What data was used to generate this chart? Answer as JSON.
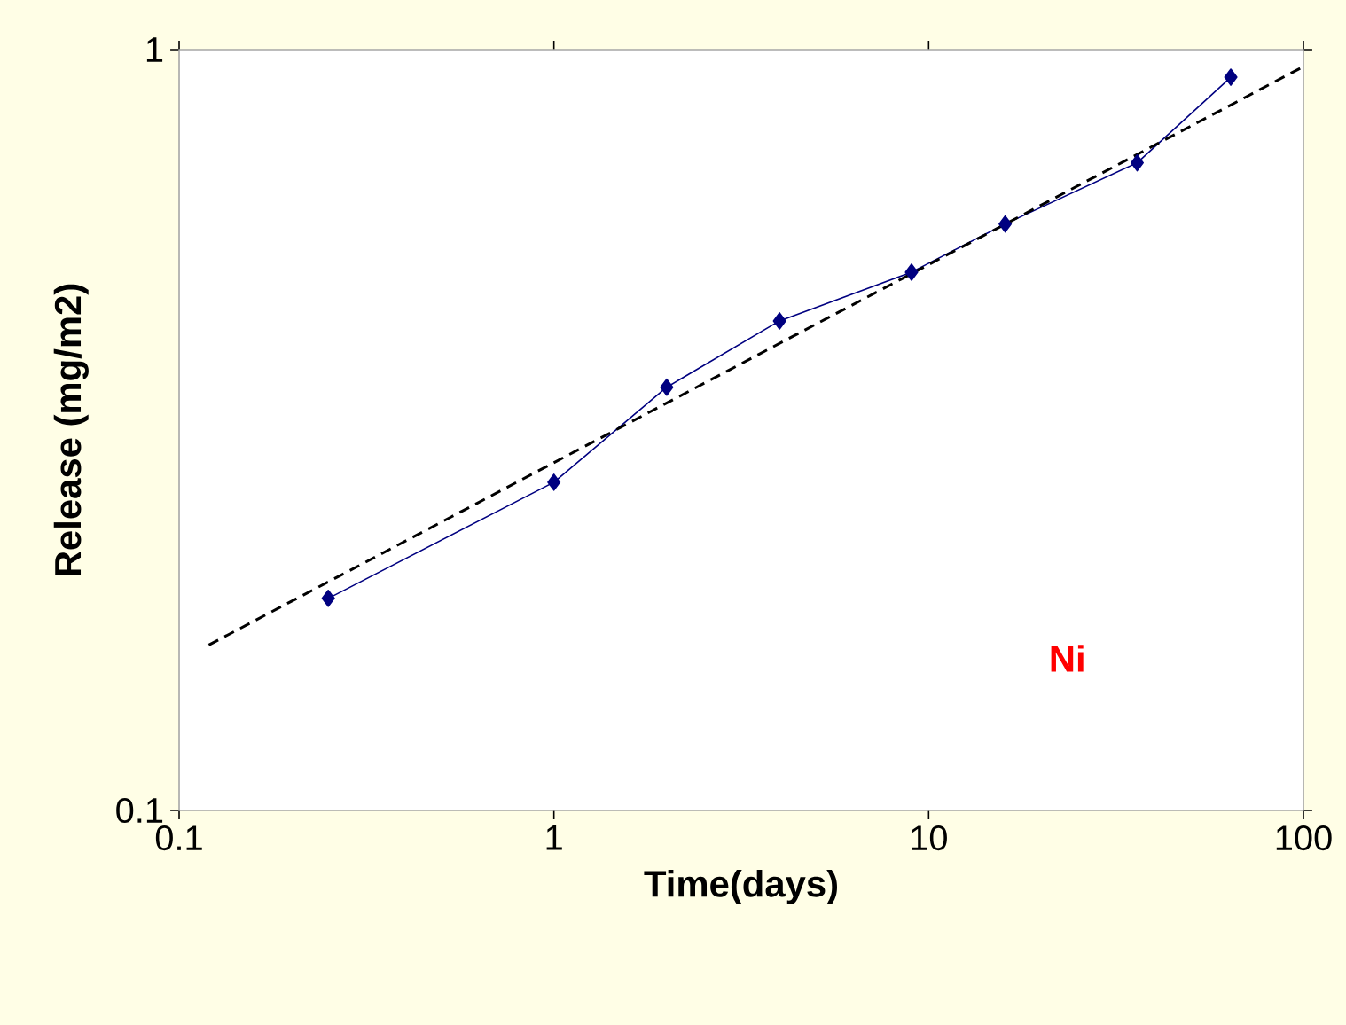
{
  "chart_data": {
    "type": "line",
    "xlabel": "Time(days)",
    "ylabel": "Release (mg/m2)",
    "log": "xy",
    "xlim": [
      0.1,
      100
    ],
    "ylim": [
      0.1,
      1
    ],
    "xticks": [
      0.1,
      1,
      10,
      100
    ],
    "yticks": [
      0.1,
      1
    ],
    "series": [
      {
        "color": "#000080",
        "x": [
          0.25,
          1,
          2,
          4,
          9,
          16,
          36,
          64
        ],
        "values": [
          0.19,
          0.27,
          0.36,
          0.44,
          0.51,
          0.59,
          0.71,
          0.92
        ],
        "marker": "diamond",
        "line_style": "solid"
      },
      {
        "type": "line",
        "color": "#000000",
        "x": [
          0.12,
          100
        ],
        "values": [
          0.165,
          0.95
        ],
        "marker": "none",
        "line_style": "dashed"
      }
    ],
    "annotations": [
      "Ni"
    ]
  }
}
